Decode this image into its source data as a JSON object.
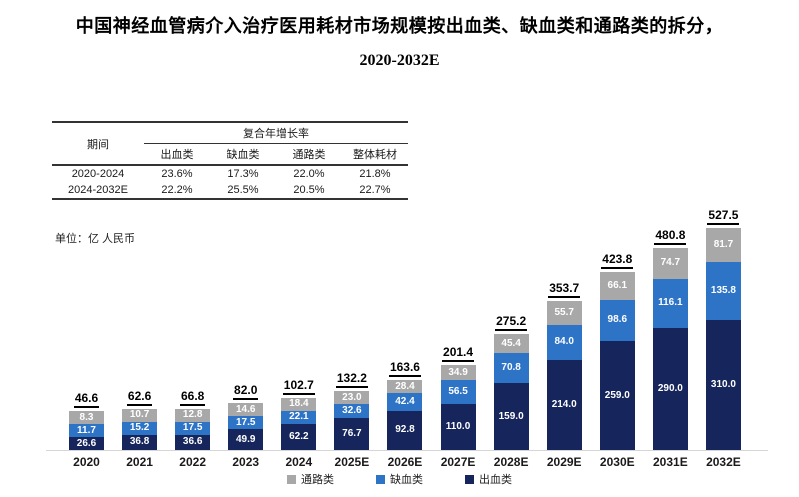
{
  "title": {
    "line1": "中国神经血管病介入治疗医用耗材市场规模按出血类、缺血类和通路类的拆分，",
    "line2": "2020-2032E"
  },
  "unit_label": "单位：亿 人民币",
  "table": {
    "period_header": "期间",
    "cagr_header": "复合年增长率",
    "columns": [
      "出血类",
      "缺血类",
      "通路类",
      "整体耗材"
    ],
    "rows": [
      {
        "period": "2020-2024",
        "values": [
          "23.6%",
          "17.3%",
          "22.0%",
          "21.8%"
        ]
      },
      {
        "period": "2024-2032E",
        "values": [
          "22.2%",
          "25.5%",
          "20.5%",
          "22.7%"
        ]
      }
    ]
  },
  "legend": [
    {
      "label": "通路类",
      "color": "#a8a8a8"
    },
    {
      "label": "缺血类",
      "color": "#2e74c6"
    },
    {
      "label": "出血类",
      "color": "#16265c"
    }
  ],
  "colors": {
    "hemorrhagic": "#16265c",
    "ischemic": "#2e74c6",
    "access": "#a8a8a8"
  },
  "chart_data": {
    "type": "bar",
    "stacked": true,
    "title": "中国神经血管病介入治疗医用耗材市场规模按出血类、缺血类和通路类的拆分，2020-2032E",
    "ylabel": "单位：亿 人民币",
    "ylim": [
      0,
      530
    ],
    "grid": false,
    "legend_position": "bottom",
    "categories": [
      "2020",
      "2021",
      "2022",
      "2023",
      "2024",
      "2025E",
      "2026E",
      "2027E",
      "2028E",
      "2029E",
      "2030E",
      "2031E",
      "2032E"
    ],
    "totals": [
      46.6,
      62.6,
      66.8,
      82.0,
      102.7,
      132.2,
      163.6,
      201.4,
      275.2,
      353.7,
      423.8,
      480.8,
      527.5
    ],
    "series": [
      {
        "name": "出血类",
        "color": "#16265c",
        "values": [
          26.6,
          36.8,
          36.6,
          49.9,
          62.2,
          76.7,
          92.8,
          110.0,
          159.0,
          214.0,
          259.0,
          290.0,
          310.0
        ]
      },
      {
        "name": "缺血类",
        "color": "#2e74c6",
        "values": [
          11.7,
          15.2,
          17.5,
          17.5,
          22.1,
          32.6,
          42.4,
          56.5,
          70.8,
          84.0,
          98.6,
          116.1,
          135.8
        ]
      },
      {
        "name": "通路类",
        "color": "#a8a8a8",
        "values": [
          8.3,
          10.7,
          12.8,
          14.6,
          18.4,
          23.0,
          28.4,
          34.9,
          45.4,
          55.7,
          66.1,
          74.7,
          81.7
        ]
      }
    ]
  }
}
